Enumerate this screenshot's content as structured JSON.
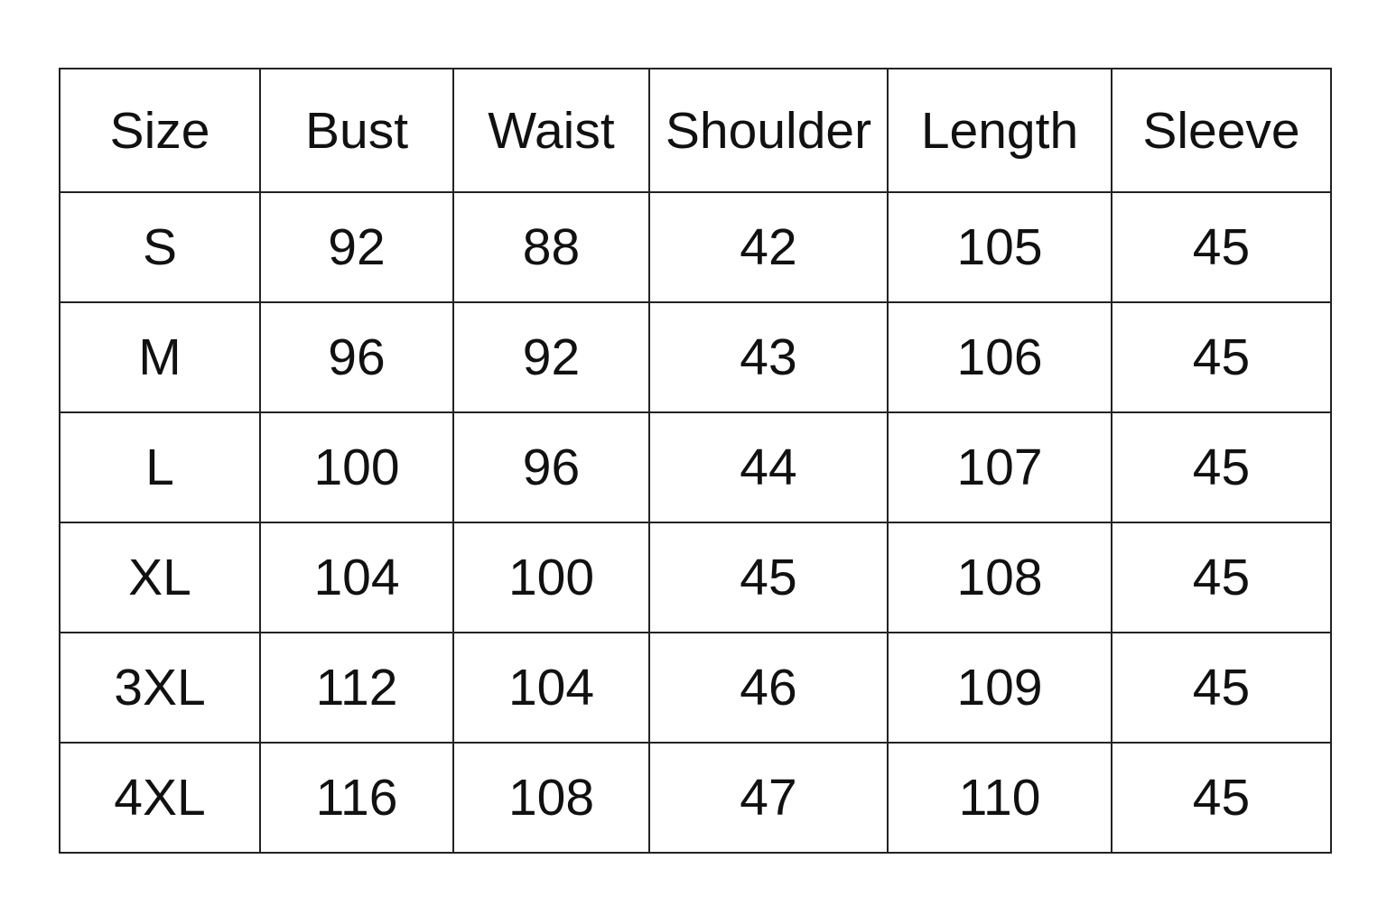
{
  "table": {
    "header": [
      "Size",
      "Bust",
      "Waist",
      "Shoulder",
      "Length",
      "Sleeve"
    ],
    "rows": [
      [
        "S",
        92,
        88,
        42,
        105,
        45
      ],
      [
        "M",
        96,
        92,
        43,
        106,
        45
      ],
      [
        "L",
        100,
        96,
        44,
        107,
        45
      ],
      [
        "XL",
        104,
        100,
        45,
        108,
        45
      ],
      [
        "3XL",
        112,
        104,
        46,
        109,
        45
      ],
      [
        "4XL",
        116,
        108,
        47,
        110,
        45
      ]
    ]
  }
}
